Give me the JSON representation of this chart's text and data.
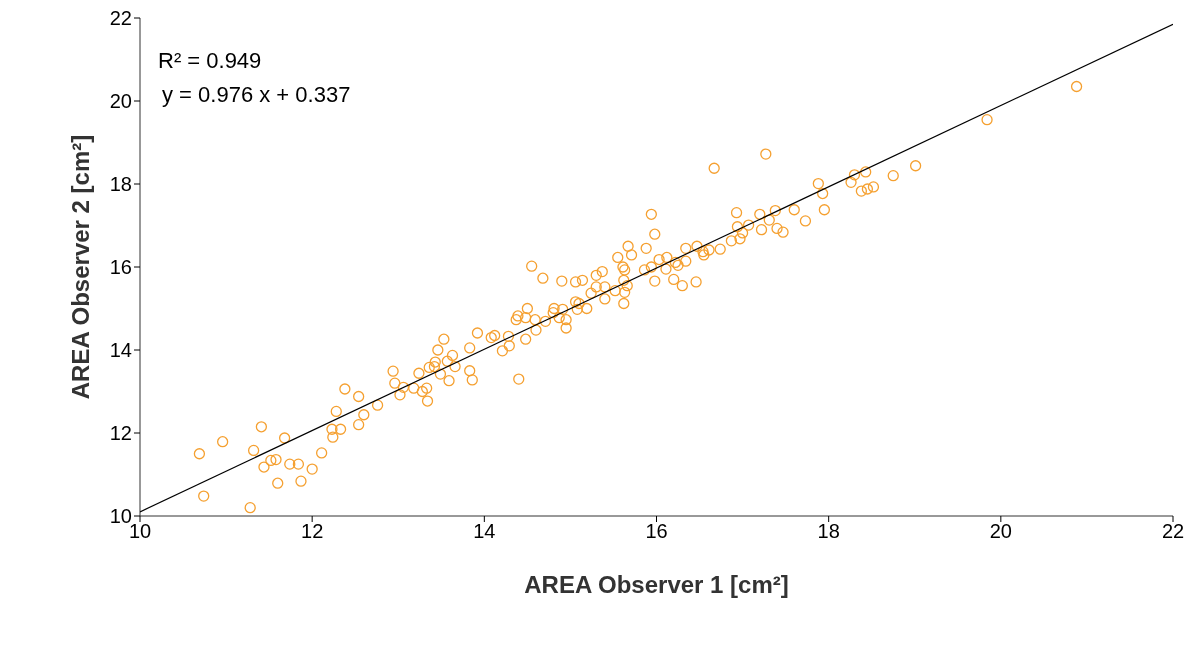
{
  "chart_data": {
    "type": "scatter",
    "xlabel": "AREA Observer 1 [cm²]",
    "ylabel": "AREA Observer 2 [cm²]",
    "annotations": [
      "R² = 0.949",
      "y = 0.976 x + 0.337"
    ],
    "xlim": [
      10,
      22
    ],
    "ylim": [
      10,
      22
    ],
    "xticks": [
      10,
      12,
      14,
      16,
      18,
      20,
      22
    ],
    "yticks": [
      10,
      12,
      14,
      16,
      18,
      20,
      22
    ],
    "series": [
      {
        "marker": "circle",
        "color": "#f5a030",
        "x": [
          10.69,
          10.74,
          10.96,
          11.28,
          11.32,
          11.41,
          11.44,
          11.52,
          11.58,
          11.6,
          11.68,
          11.74,
          11.84,
          11.87,
          12.0,
          12.11,
          12.24,
          12.23,
          12.33,
          12.28,
          12.38,
          12.54,
          12.54,
          12.6,
          12.76,
          12.94,
          12.96,
          13.02,
          13.06,
          13.18,
          13.24,
          13.28,
          13.33,
          13.34,
          13.36,
          13.42,
          13.43,
          13.49,
          13.59,
          13.66,
          13.57,
          13.83,
          13.86,
          13.53,
          13.46,
          13.63,
          13.83,
          13.92,
          14.08,
          14.12,
          14.21,
          14.28,
          14.29,
          14.4,
          14.48,
          14.37,
          14.39,
          14.5,
          14.48,
          14.59,
          14.6,
          14.55,
          14.68,
          14.71,
          14.81,
          14.8,
          14.87,
          14.9,
          14.91,
          14.95,
          14.95,
          15.06,
          15.14,
          15.06,
          15.1,
          15.08,
          15.19,
          15.24,
          15.3,
          15.37,
          15.3,
          15.4,
          15.4,
          15.52,
          15.55,
          15.67,
          15.71,
          15.61,
          15.63,
          15.62,
          15.63,
          15.62,
          15.66,
          15.88,
          15.86,
          15.98,
          15.94,
          16.03,
          16.67,
          17.27,
          15.94,
          15.98,
          16.34,
          16.47,
          16.54,
          16.61,
          16.74,
          16.55,
          16.12,
          16.11,
          16.2,
          16.3,
          16.46,
          16.25,
          16.34,
          16.22,
          16.93,
          16.87,
          16.97,
          17.0,
          16.94,
          17.07,
          17.2,
          17.22,
          17.31,
          17.38,
          17.4,
          17.47,
          17.6,
          17.73,
          17.88,
          17.93,
          17.95,
          18.26,
          18.3,
          18.43,
          18.38,
          18.45,
          18.52,
          18.75,
          19.01,
          19.84,
          20.88
        ],
        "values": [
          11.5,
          10.48,
          11.79,
          10.2,
          11.58,
          12.15,
          11.18,
          11.34,
          11.36,
          10.79,
          11.88,
          11.25,
          11.25,
          10.84,
          11.13,
          11.52,
          11.9,
          12.09,
          12.09,
          12.52,
          13.06,
          12.2,
          12.88,
          12.44,
          12.67,
          13.49,
          13.2,
          12.92,
          13.1,
          13.08,
          13.44,
          13.0,
          13.08,
          12.77,
          13.58,
          13.6,
          13.71,
          13.42,
          13.26,
          13.6,
          13.73,
          13.5,
          13.28,
          14.26,
          14.0,
          13.87,
          14.05,
          14.41,
          14.3,
          14.35,
          13.98,
          14.33,
          14.1,
          13.3,
          14.26,
          14.73,
          14.82,
          15.0,
          14.78,
          14.73,
          14.48,
          16.02,
          15.73,
          14.69,
          15.0,
          14.9,
          14.78,
          15.66,
          14.98,
          14.73,
          14.53,
          15.64,
          15.68,
          15.16,
          15.12,
          14.98,
          15.0,
          15.37,
          15.8,
          15.89,
          15.52,
          15.52,
          15.23,
          15.43,
          16.23,
          16.5,
          16.29,
          16.0,
          15.93,
          15.68,
          15.39,
          15.12,
          15.55,
          16.45,
          15.93,
          15.66,
          16.0,
          16.18,
          18.38,
          18.72,
          17.27,
          16.79,
          16.45,
          16.5,
          16.37,
          16.41,
          16.43,
          16.29,
          16.23,
          15.95,
          15.7,
          15.55,
          15.64,
          16.04,
          16.14,
          16.11,
          17.31,
          16.63,
          16.68,
          16.82,
          16.97,
          17.01,
          17.27,
          16.9,
          17.13,
          17.36,
          16.93,
          16.84,
          17.38,
          17.11,
          18.01,
          17.77,
          17.38,
          18.04,
          18.22,
          18.29,
          17.83,
          17.88,
          17.93,
          18.2,
          18.44,
          19.55,
          20.35
        ]
      },
      {
        "type": "line",
        "marker": "none",
        "color": "#000000",
        "x": [
          10,
          22
        ],
        "values": [
          10.1,
          21.85
        ]
      }
    ]
  }
}
